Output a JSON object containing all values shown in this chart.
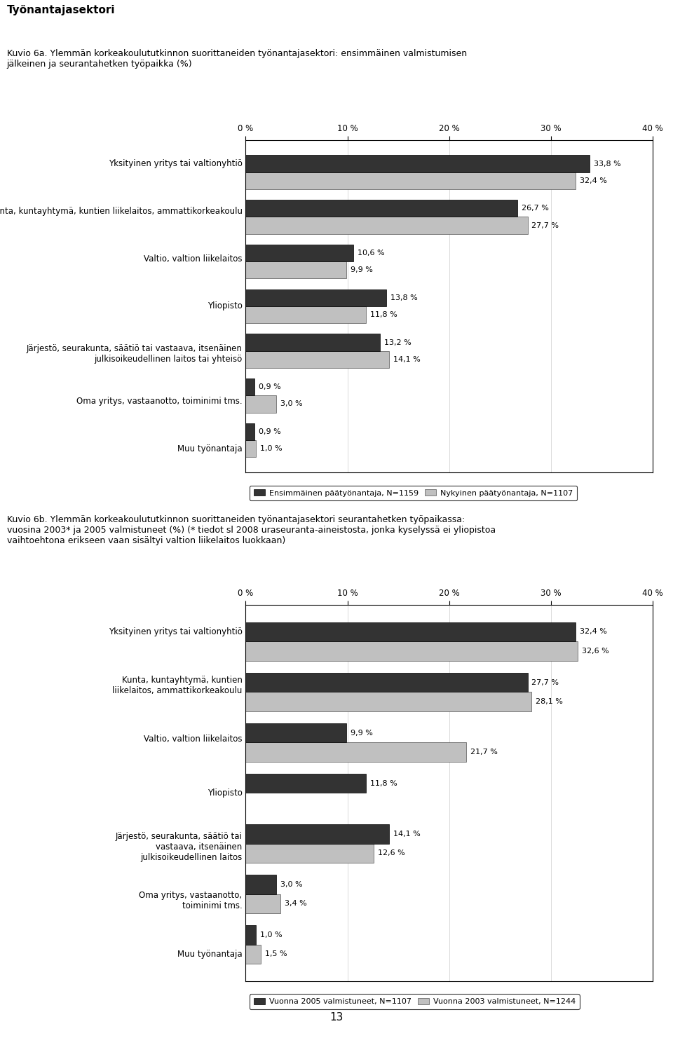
{
  "page_number": "13",
  "section_title": "Työnantajasektori",
  "chart_a": {
    "title": "Kuvio 6a. Ylemmän korkeakoulututkinnon suorittaneiden työnantajasektori: ensimmäinen valmistumisen\njälkeinen ja seurantahetken työpaikka (%)",
    "categories": [
      "Yksityinen yritys tai valtionyhtiö",
      "Kunta, kuntayhtymä, kuntien liikelaitos, ammattikorkeakoulu",
      "Valtio, valtion liikelaitos",
      "Yliopisto",
      "Järjestö, seurakunta, säätiö tai vastaava, itsenäinen\njulkisoikeudellinen laitos tai yhteisö",
      "Oma yritys, vastaanotto, toiminimi tms.",
      "Muu työnantaja"
    ],
    "series1_label": "Ensimmäinen päätyönantaja, N=1159",
    "series2_label": "Nykyinen päätyönantaja, N=1107",
    "series1_values": [
      33.8,
      26.7,
      10.6,
      13.8,
      13.2,
      0.9,
      0.9
    ],
    "series2_values": [
      32.4,
      27.7,
      9.9,
      11.8,
      14.1,
      3.0,
      1.0
    ],
    "color1": "#333333",
    "color2": "#c0c0c0",
    "xlim": [
      0,
      40
    ],
    "xticks": [
      0,
      10,
      20,
      30,
      40
    ],
    "xticklabels": [
      "0 %",
      "10 %",
      "20 %",
      "30 %",
      "40 %"
    ]
  },
  "chart_b": {
    "title": "Kuvio 6b. Ylemmän korkeakoulututkinnon suorittaneiden työnantajasektori seurantahetken työpaikassa:\nvuosina 2003* ja 2005 valmistuneet (%) (* tiedot sl 2008 uraseuranta-aineistosta, jonka kyselyssä ei yliopistoa\nvaihtoehtona erikseen vaan sisältyi valtion liikelaitos luokkaan)",
    "categories": [
      "Yksityinen yritys tai valtionyhtiö",
      "Kunta, kuntayhtymä, kuntien\nliikelaitos, ammattikorkeakoulu",
      "Valtio, valtion liikelaitos",
      "Yliopisto",
      "Järjestö, seurakunta, säätiö tai\nvastaava, itsenäinen\njulkisoikeudellinen laitos",
      "Oma yritys, vastaanotto,\ntoiminimi tms.",
      "Muu työnantaja"
    ],
    "series1_label": "Vuonna 2005 valmistuneet, N=1107",
    "series2_label": "Vuonna 2003 valmistuneet, N=1244",
    "series1_values": [
      32.4,
      27.7,
      9.9,
      11.8,
      14.1,
      3.0,
      1.0
    ],
    "series2_values": [
      32.6,
      28.1,
      21.7,
      0,
      12.6,
      3.4,
      1.5
    ],
    "series2_missing": [
      false,
      false,
      false,
      true,
      false,
      false,
      false
    ],
    "color1": "#333333",
    "color2": "#c0c0c0",
    "xlim": [
      0,
      40
    ],
    "xticks": [
      0,
      10,
      20,
      30,
      40
    ],
    "xticklabels": [
      "0 %",
      "10 %",
      "20 %",
      "30 %",
      "40 %"
    ]
  },
  "background_color": "#ffffff",
  "bar_height": 0.38,
  "fontsize_section": 11,
  "fontsize_title": 9,
  "fontsize_labels": 8.5,
  "fontsize_ticks": 8.5,
  "fontsize_bar_values": 8,
  "fontsize_legend": 8
}
